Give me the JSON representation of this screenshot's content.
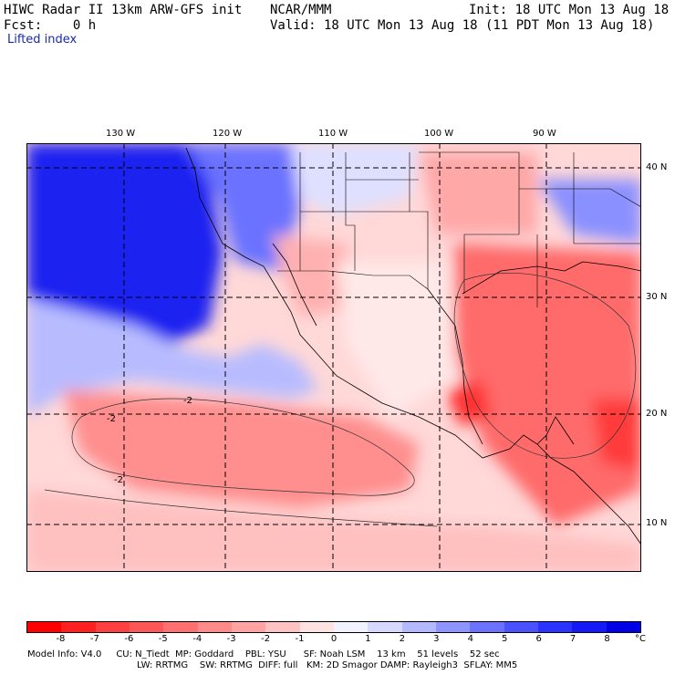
{
  "header": {
    "model": "HIWC Radar II 13km ARW-GFS init",
    "org": "NCAR/MMM",
    "init": "Init: 18 UTC Mon 13 Aug 18",
    "fcst": "Fcst:    0 h",
    "valid": "Valid: 18 UTC Mon 13 Aug 18 (11 PDT Mon 13 Aug 18)",
    "field": "Lifted index"
  },
  "map": {
    "lon_ticks": [
      "130 W",
      "120 W",
      "110 W",
      "100 W",
      "90 W"
    ],
    "lat_ticks": [
      "40 N",
      "30 N",
      "20 N",
      "10 N"
    ],
    "contour_labels": [
      "-2",
      "-2",
      "-2"
    ]
  },
  "legend": {
    "labels": [
      "-8",
      "-7",
      "-6",
      "-5",
      "-4",
      "-3",
      "-2",
      "-1",
      "0",
      "1",
      "2",
      "3",
      "4",
      "5",
      "6",
      "7",
      "8"
    ],
    "unit": "°C",
    "colors": [
      "#ff0000",
      "#ff2020",
      "#ff4040",
      "#ff5757",
      "#ff7070",
      "#ff8a8a",
      "#ffa3a3",
      "#ffc2c2",
      "#ffe2e2",
      "#f2f2ff",
      "#d6d8ff",
      "#b3b8ff",
      "#8f95ff",
      "#6b72ff",
      "#4a52ff",
      "#2a33ff",
      "#1419f5",
      "#0000e6"
    ]
  },
  "footer": {
    "line1": "Model Info: V4.0     CU: N_Tiedt  MP: Goddard    PBL: YSU      SF: Noah LSM    13 km    51 levels    52 sec",
    "line2": "LW: RRTMG    SW: RRTMG  DIFF: full   KM: 2D Smagor DAMP: Rayleigh3  SFLAY: MM5"
  }
}
